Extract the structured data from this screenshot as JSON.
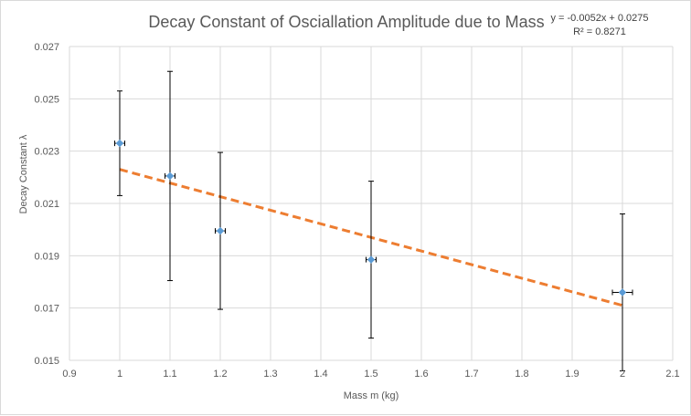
{
  "chart_data": {
    "type": "scatter",
    "title": "Decay Constant of Osciallation Amplitude due to Mass",
    "xlabel": "Mass m (kg)",
    "ylabel": "Decay Constant λ",
    "xlim": [
      0.9,
      2.1
    ],
    "ylim": [
      0.015,
      0.027
    ],
    "x_ticks": [
      "0.9",
      "1",
      "1.1",
      "1.2",
      "1.3",
      "1.4",
      "1.5",
      "1.6",
      "1.7",
      "1.8",
      "1.9",
      "2",
      "2.1"
    ],
    "y_ticks": [
      "0.015",
      "0.017",
      "0.019",
      "0.021",
      "0.023",
      "0.025",
      "0.027"
    ],
    "grid": true,
    "series": [
      {
        "marker_color": "#5B9BD5",
        "points": [
          {
            "x": 1.0,
            "y": 0.0233,
            "y_err": 0.002,
            "x_err": 0.01
          },
          {
            "x": 1.1,
            "y": 0.02205,
            "y_err": 0.004,
            "x_err": 0.01
          },
          {
            "x": 1.2,
            "y": 0.01995,
            "y_err": 0.003,
            "x_err": 0.01
          },
          {
            "x": 1.5,
            "y": 0.01885,
            "y_err": 0.003,
            "x_err": 0.01
          },
          {
            "x": 2.0,
            "y": 0.0176,
            "y_err": 0.003,
            "x_err": 0.02
          }
        ]
      }
    ],
    "trendline": {
      "slope": -0.0052,
      "intercept": 0.0275,
      "x_range": [
        1.0,
        2.0
      ],
      "color": "#ED7D31",
      "style": "dashed",
      "equation_label": "y = -0.0052x + 0.0275",
      "r2_label": "R² = 0.8271"
    }
  }
}
